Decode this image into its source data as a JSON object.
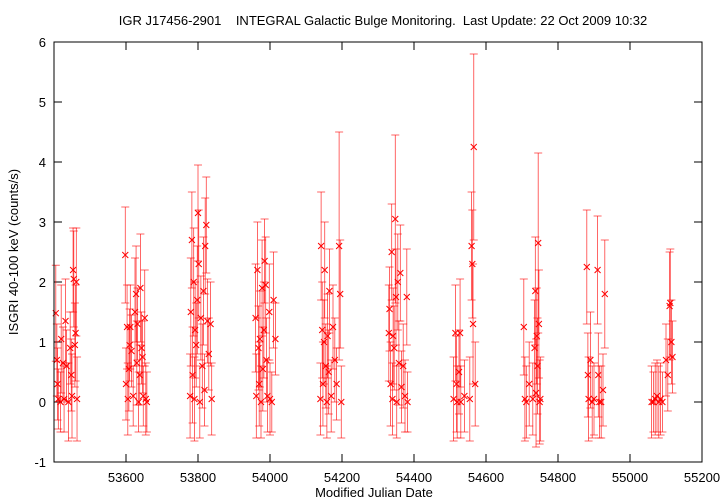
{
  "chart_data": {
    "type": "scatter",
    "title": "IGR J17456-2901    INTEGRAL Galactic Bulge Monitoring.  Last Update: 22 Oct 2009 10:32",
    "xlabel": "Modified Julian Date",
    "ylabel": "ISGRI 40-100 keV (counts/s)",
    "xlim": [
      53400,
      55200
    ],
    "ylim": [
      -1,
      6
    ],
    "grid": false,
    "legend": "none",
    "marker": "x",
    "error_bars": "vertical",
    "color": "#ff0000",
    "x_ticks": [
      "53600",
      "53800",
      "54000",
      "54200",
      "54400",
      "54600",
      "54800",
      "55000",
      "55200"
    ],
    "y_ticks": [
      "-1",
      "0",
      "1",
      "2",
      "3",
      "4",
      "5",
      "6"
    ],
    "series": [
      {
        "points": [
          {
            "x": 53405,
            "y": 1.48,
            "err": 0.8
          },
          {
            "x": 53408,
            "y": 0.7,
            "err": 0.6
          },
          {
            "x": 53410,
            "y": 0.3,
            "err": 0.6
          },
          {
            "x": 53412,
            "y": 0.05,
            "err": 0.5
          },
          {
            "x": 53418,
            "y": 0.0,
            "err": 0.5
          },
          {
            "x": 53420,
            "y": 1.05,
            "err": 0.9
          },
          {
            "x": 53425,
            "y": 0.65,
            "err": 0.6
          },
          {
            "x": 53428,
            "y": 0.05,
            "err": 0.55
          },
          {
            "x": 53432,
            "y": 1.35,
            "err": 0.7
          },
          {
            "x": 53435,
            "y": 0.6,
            "err": 0.6
          },
          {
            "x": 53440,
            "y": 0.0,
            "err": 0.65
          },
          {
            "x": 53445,
            "y": 0.9,
            "err": 0.6
          },
          {
            "x": 53448,
            "y": 0.45,
            "err": 0.6
          },
          {
            "x": 53450,
            "y": 0.1,
            "err": 0.7
          },
          {
            "x": 53453,
            "y": 2.2,
            "err": 0.7
          },
          {
            "x": 53455,
            "y": 2.05,
            "err": 0.8
          },
          {
            "x": 53458,
            "y": 0.95,
            "err": 0.7
          },
          {
            "x": 53460,
            "y": 1.15,
            "err": 0.8
          },
          {
            "x": 53462,
            "y": 2.0,
            "err": 0.9
          },
          {
            "x": 53464,
            "y": 0.05,
            "err": 0.7
          },
          {
            "x": 53598,
            "y": 2.45,
            "err": 0.8
          },
          {
            "x": 53600,
            "y": 0.3,
            "err": 0.6
          },
          {
            "x": 53603,
            "y": 1.25,
            "err": 0.7
          },
          {
            "x": 53605,
            "y": 0.05,
            "err": 0.6
          },
          {
            "x": 53608,
            "y": 0.55,
            "err": 0.7
          },
          {
            "x": 53610,
            "y": 0.95,
            "err": 0.6
          },
          {
            "x": 53612,
            "y": 1.25,
            "err": 0.7
          },
          {
            "x": 53615,
            "y": 0.85,
            "err": 0.6
          },
          {
            "x": 53620,
            "y": 0.1,
            "err": 0.5
          },
          {
            "x": 53625,
            "y": 1.5,
            "err": 0.9
          },
          {
            "x": 53628,
            "y": 1.8,
            "err": 0.8
          },
          {
            "x": 53630,
            "y": 0.65,
            "err": 0.7
          },
          {
            "x": 53632,
            "y": 1.3,
            "err": 0.6
          },
          {
            "x": 53635,
            "y": 0.0,
            "err": 0.5
          },
          {
            "x": 53638,
            "y": 0.45,
            "err": 0.5
          },
          {
            "x": 53640,
            "y": 1.9,
            "err": 0.9
          },
          {
            "x": 53643,
            "y": 0.9,
            "err": 0.6
          },
          {
            "x": 53646,
            "y": 0.75,
            "err": 0.6
          },
          {
            "x": 53648,
            "y": 0.1,
            "err": 0.5
          },
          {
            "x": 53652,
            "y": 1.4,
            "err": 0.8
          },
          {
            "x": 53655,
            "y": 0.05,
            "err": 0.6
          },
          {
            "x": 53658,
            "y": 0.0,
            "err": 0.5
          },
          {
            "x": 53778,
            "y": 0.1,
            "err": 0.7
          },
          {
            "x": 53780,
            "y": 1.5,
            "err": 0.9
          },
          {
            "x": 53783,
            "y": 2.7,
            "err": 0.8
          },
          {
            "x": 53785,
            "y": 0.45,
            "err": 0.8
          },
          {
            "x": 53788,
            "y": 2.0,
            "err": 0.9
          },
          {
            "x": 53790,
            "y": 0.05,
            "err": 0.7
          },
          {
            "x": 53792,
            "y": 1.2,
            "err": 0.8
          },
          {
            "x": 53795,
            "y": 0.95,
            "err": 0.7
          },
          {
            "x": 53798,
            "y": 1.7,
            "err": 0.9
          },
          {
            "x": 53800,
            "y": 3.15,
            "err": 0.8
          },
          {
            "x": 53802,
            "y": 2.3,
            "err": 0.9
          },
          {
            "x": 53805,
            "y": 0.0,
            "err": 0.6
          },
          {
            "x": 53808,
            "y": 1.4,
            "err": 0.7
          },
          {
            "x": 53812,
            "y": 0.6,
            "err": 0.7
          },
          {
            "x": 53815,
            "y": 1.85,
            "err": 0.9
          },
          {
            "x": 53818,
            "y": 0.2,
            "err": 0.6
          },
          {
            "x": 53820,
            "y": 2.6,
            "err": 0.8
          },
          {
            "x": 53823,
            "y": 2.95,
            "err": 0.8
          },
          {
            "x": 53826,
            "y": 1.35,
            "err": 0.7
          },
          {
            "x": 53830,
            "y": 0.8,
            "err": 0.6
          },
          {
            "x": 53835,
            "y": 1.3,
            "err": 0.7
          },
          {
            "x": 53838,
            "y": 0.05,
            "err": 0.6
          },
          {
            "x": 53960,
            "y": 1.4,
            "err": 0.9
          },
          {
            "x": 53962,
            "y": 0.1,
            "err": 0.7
          },
          {
            "x": 53965,
            "y": 2.2,
            "err": 0.8
          },
          {
            "x": 53968,
            "y": 0.9,
            "err": 0.7
          },
          {
            "x": 53970,
            "y": 0.3,
            "err": 0.7
          },
          {
            "x": 53972,
            "y": 1.05,
            "err": 0.8
          },
          {
            "x": 53975,
            "y": 0.0,
            "err": 0.6
          },
          {
            "x": 53978,
            "y": 1.9,
            "err": 0.8
          },
          {
            "x": 53980,
            "y": 0.55,
            "err": 0.7
          },
          {
            "x": 53983,
            "y": 1.2,
            "err": 0.8
          },
          {
            "x": 53985,
            "y": 2.35,
            "err": 0.7
          },
          {
            "x": 53988,
            "y": 1.95,
            "err": 0.8
          },
          {
            "x": 53990,
            "y": 0.7,
            "err": 0.7
          },
          {
            "x": 53993,
            "y": 0.1,
            "err": 0.6
          },
          {
            "x": 53998,
            "y": 1.5,
            "err": 0.8
          },
          {
            "x": 54000,
            "y": 0.05,
            "err": 0.6
          },
          {
            "x": 54005,
            "y": 0.0,
            "err": 0.5
          },
          {
            "x": 54010,
            "y": 1.7,
            "err": 0.8
          },
          {
            "x": 54015,
            "y": 1.05,
            "err": 0.6
          },
          {
            "x": 54140,
            "y": 0.05,
            "err": 0.6
          },
          {
            "x": 54142,
            "y": 2.6,
            "err": 0.9
          },
          {
            "x": 54145,
            "y": 1.2,
            "err": 0.8
          },
          {
            "x": 54147,
            "y": 0.3,
            "err": 0.7
          },
          {
            "x": 54150,
            "y": 1.0,
            "err": 0.7
          },
          {
            "x": 54152,
            "y": 2.2,
            "err": 0.8
          },
          {
            "x": 54155,
            "y": 0.6,
            "err": 0.7
          },
          {
            "x": 54158,
            "y": 0.0,
            "err": 0.6
          },
          {
            "x": 54160,
            "y": 1.1,
            "err": 0.7
          },
          {
            "x": 54163,
            "y": 0.5,
            "err": 0.7
          },
          {
            "x": 54165,
            "y": 1.85,
            "err": 0.7
          },
          {
            "x": 54170,
            "y": 0.1,
            "err": 0.6
          },
          {
            "x": 54175,
            "y": 1.25,
            "err": 0.7
          },
          {
            "x": 54180,
            "y": 0.7,
            "err": 0.7
          },
          {
            "x": 54185,
            "y": 0.3,
            "err": 0.6
          },
          {
            "x": 54192,
            "y": 2.6,
            "err": 1.9
          },
          {
            "x": 54195,
            "y": 1.8,
            "err": 0.9
          },
          {
            "x": 54198,
            "y": 0.0,
            "err": 0.6
          },
          {
            "x": 54330,
            "y": 1.15,
            "err": 0.8
          },
          {
            "x": 54332,
            "y": 1.55,
            "err": 0.7
          },
          {
            "x": 54335,
            "y": 0.3,
            "err": 0.7
          },
          {
            "x": 54338,
            "y": 2.5,
            "err": 0.8
          },
          {
            "x": 54340,
            "y": 0.05,
            "err": 0.6
          },
          {
            "x": 54342,
            "y": 1.1,
            "err": 0.8
          },
          {
            "x": 54345,
            "y": 0.9,
            "err": 0.7
          },
          {
            "x": 54348,
            "y": 3.05,
            "err": 1.4
          },
          {
            "x": 54350,
            "y": 1.75,
            "err": 0.8
          },
          {
            "x": 54352,
            "y": 0.0,
            "err": 0.6
          },
          {
            "x": 54355,
            "y": 2.0,
            "err": 0.8
          },
          {
            "x": 54358,
            "y": 0.65,
            "err": 0.7
          },
          {
            "x": 54362,
            "y": 2.15,
            "err": 0.8
          },
          {
            "x": 54365,
            "y": 0.25,
            "err": 0.6
          },
          {
            "x": 54370,
            "y": 0.6,
            "err": 0.7
          },
          {
            "x": 54375,
            "y": 0.1,
            "err": 0.6
          },
          {
            "x": 54380,
            "y": 1.75,
            "err": 0.8
          },
          {
            "x": 54382,
            "y": 0.0,
            "err": 0.5
          },
          {
            "x": 54510,
            "y": 0.05,
            "err": 0.7
          },
          {
            "x": 54515,
            "y": 1.15,
            "err": 0.8
          },
          {
            "x": 54518,
            "y": 0.3,
            "err": 0.8
          },
          {
            "x": 54520,
            "y": 0.0,
            "err": 0.6
          },
          {
            "x": 54525,
            "y": 0.5,
            "err": 0.7
          },
          {
            "x": 54528,
            "y": 1.15,
            "err": 0.9
          },
          {
            "x": 54530,
            "y": 0.0,
            "err": 0.6
          },
          {
            "x": 54540,
            "y": 0.1,
            "err": 0.6
          },
          {
            "x": 54555,
            "y": 0.05,
            "err": 0.7
          },
          {
            "x": 54560,
            "y": 2.6,
            "err": 0.9
          },
          {
            "x": 54562,
            "y": 2.3,
            "err": 0.9
          },
          {
            "x": 54564,
            "y": 1.3,
            "err": 1.0
          },
          {
            "x": 54566,
            "y": 4.25,
            "err": 1.55
          },
          {
            "x": 54570,
            "y": 0.3,
            "err": 0.7
          },
          {
            "x": 54705,
            "y": 1.25,
            "err": 0.8
          },
          {
            "x": 54708,
            "y": 0.05,
            "err": 0.7
          },
          {
            "x": 54712,
            "y": 0.0,
            "err": 0.6
          },
          {
            "x": 54720,
            "y": 0.3,
            "err": 0.7
          },
          {
            "x": 54730,
            "y": 0.05,
            "err": 0.6
          },
          {
            "x": 54735,
            "y": 0.9,
            "err": 0.8
          },
          {
            "x": 54737,
            "y": 1.85,
            "err": 0.9
          },
          {
            "x": 54739,
            "y": 0.15,
            "err": 0.9
          },
          {
            "x": 54741,
            "y": 1.1,
            "err": 0.8
          },
          {
            "x": 54743,
            "y": 0.6,
            "err": 0.8
          },
          {
            "x": 54745,
            "y": 2.65,
            "err": 1.5
          },
          {
            "x": 54747,
            "y": 1.3,
            "err": 0.9
          },
          {
            "x": 54749,
            "y": 0.0,
            "err": 0.7
          },
          {
            "x": 54751,
            "y": 0.05,
            "err": 0.7
          },
          {
            "x": 54880,
            "y": 2.25,
            "err": 0.95
          },
          {
            "x": 54883,
            "y": 0.45,
            "err": 0.7
          },
          {
            "x": 54885,
            "y": 0.05,
            "err": 0.7
          },
          {
            "x": 54890,
            "y": 0.7,
            "err": 0.8
          },
          {
            "x": 54895,
            "y": 0.0,
            "err": 0.6
          },
          {
            "x": 54900,
            "y": 0.05,
            "err": 0.6
          },
          {
            "x": 54910,
            "y": 2.2,
            "err": 0.9
          },
          {
            "x": 54912,
            "y": 0.45,
            "err": 0.7
          },
          {
            "x": 54915,
            "y": 0.0,
            "err": 0.6
          },
          {
            "x": 54920,
            "y": 0.0,
            "err": 0.6
          },
          {
            "x": 54925,
            "y": 0.2,
            "err": 0.6
          },
          {
            "x": 54930,
            "y": 1.8,
            "err": 0.9
          },
          {
            "x": 55060,
            "y": 0.0,
            "err": 0.6
          },
          {
            "x": 55065,
            "y": 0.0,
            "err": 0.5
          },
          {
            "x": 55070,
            "y": 0.05,
            "err": 0.6
          },
          {
            "x": 55075,
            "y": 0.1,
            "err": 0.6
          },
          {
            "x": 55080,
            "y": 0.0,
            "err": 0.6
          },
          {
            "x": 55085,
            "y": 0.05,
            "err": 0.6
          },
          {
            "x": 55090,
            "y": 0.0,
            "err": 0.5
          },
          {
            "x": 55100,
            "y": 0.7,
            "err": 0.6
          },
          {
            "x": 55105,
            "y": 0.45,
            "err": 0.6
          },
          {
            "x": 55110,
            "y": 1.6,
            "err": 0.9
          },
          {
            "x": 55112,
            "y": 1.65,
            "err": 0.9
          },
          {
            "x": 55115,
            "y": 1.0,
            "err": 0.7
          },
          {
            "x": 55118,
            "y": 0.75,
            "err": 0.6
          }
        ]
      }
    ]
  }
}
